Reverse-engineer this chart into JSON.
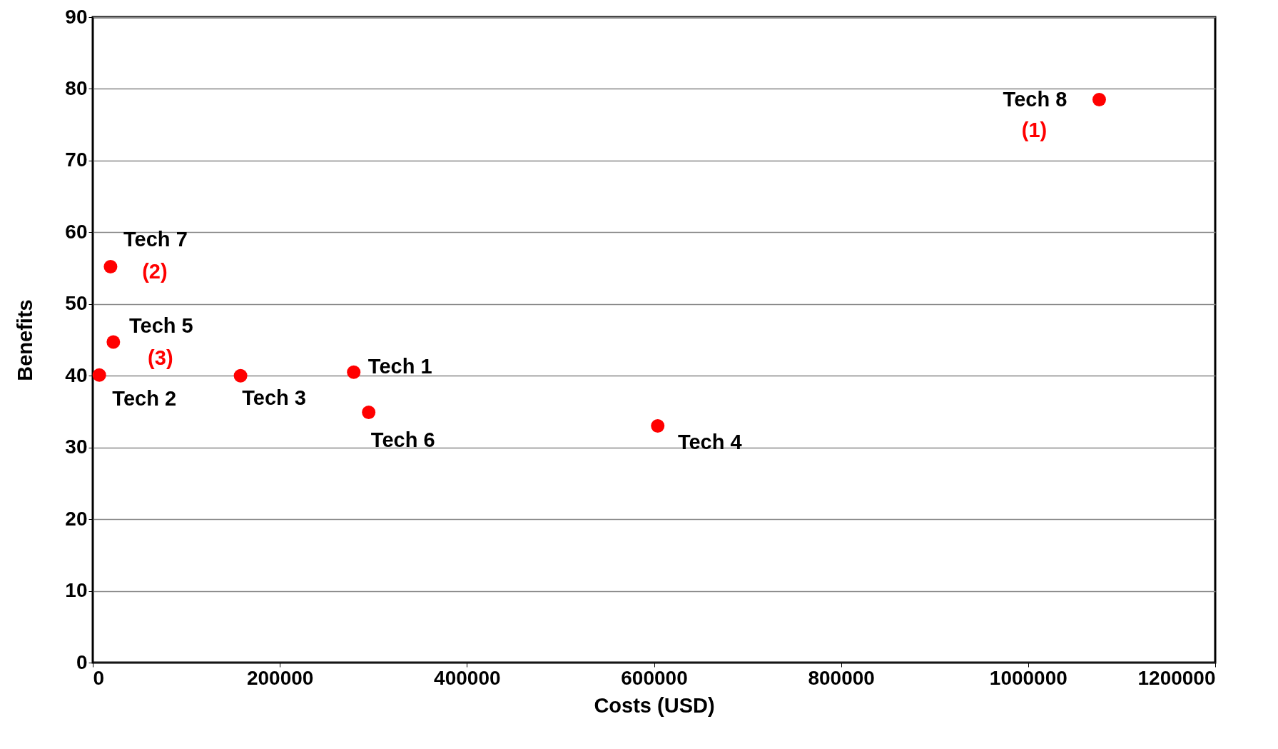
{
  "chart_data": {
    "type": "scatter",
    "xlabel": "Costs (USD)",
    "ylabel": "Benefits",
    "x": [
      279000,
      7000,
      158000,
      604000,
      22000,
      295000,
      19000,
      1076000
    ],
    "series": [
      {
        "color": "#ff0000",
        "values": [
          40.5,
          40.1,
          40.0,
          33.0,
          44.7,
          34.9,
          55.2,
          78.5
        ]
      }
    ],
    "xlim": [
      0,
      1200000
    ],
    "xticks": [
      0,
      200000,
      400000,
      600000,
      800000,
      1000000,
      1200000
    ],
    "ylim": [
      0,
      90
    ],
    "yticks": [
      0,
      10,
      20,
      30,
      40,
      50,
      60,
      70,
      80,
      90
    ],
    "grid": "y",
    "marker": "circle",
    "annotations": [
      {
        "text": "Tech 1",
        "x": 279000,
        "y": 40.5
      },
      {
        "text": "Tech 2",
        "x": 7000,
        "y": 40.1
      },
      {
        "text": "Tech 3",
        "x": 158000,
        "y": 40.0
      },
      {
        "text": "Tech 4",
        "x": 604000,
        "y": 33.0
      },
      {
        "text": "Tech 5",
        "x": 22000,
        "y": 44.7
      },
      {
        "text": "Tech 6",
        "x": 295000,
        "y": 34.9
      },
      {
        "text": "Tech 7",
        "x": 19000,
        "y": 55.2
      },
      {
        "text": "Tech 8",
        "x": 1076000,
        "y": 78.5
      },
      {
        "text": "(1)",
        "x": 1076000,
        "y": 78.5
      },
      {
        "text": "(2)",
        "x": 19000,
        "y": 55.2
      },
      {
        "text": "(3)",
        "x": 22000,
        "y": 44.7
      }
    ]
  }
}
